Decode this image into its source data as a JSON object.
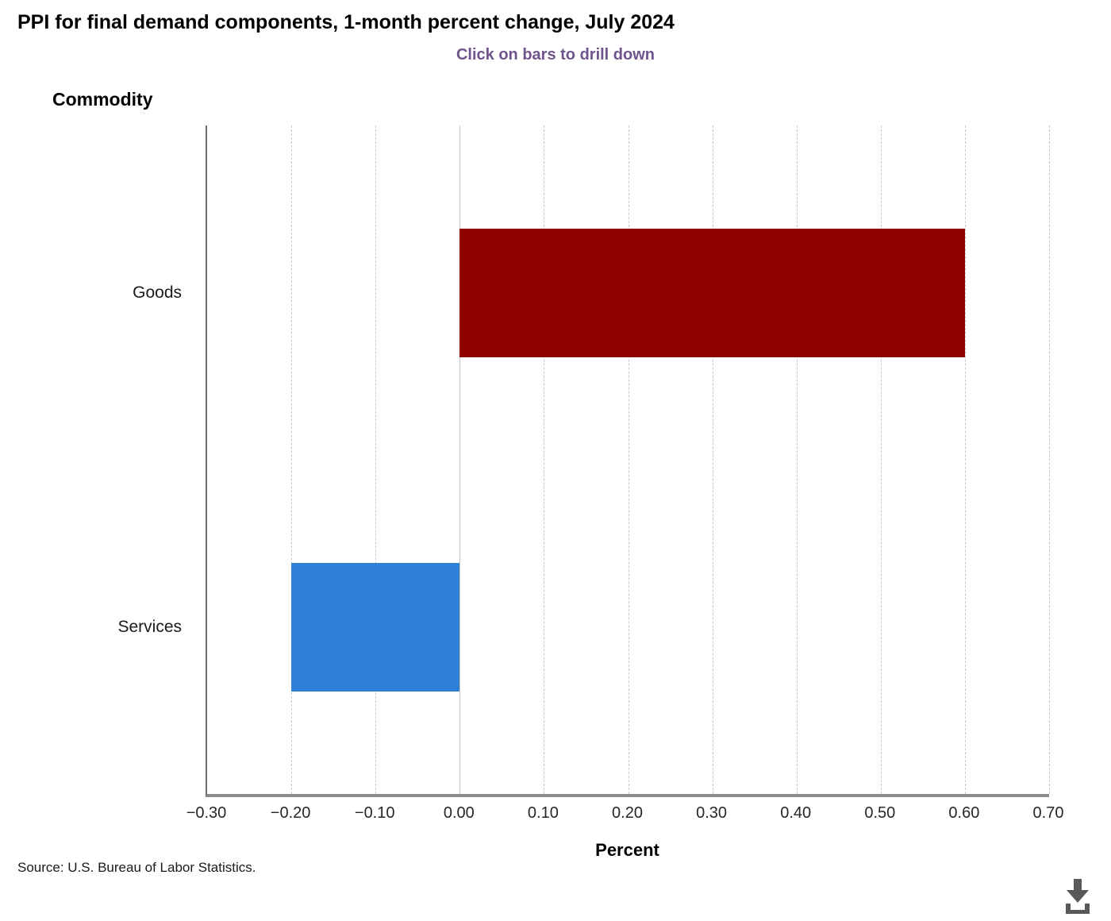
{
  "chart_data": {
    "type": "bar",
    "orientation": "horizontal",
    "title": "PPI for final demand components, 1-month percent change, July 2024",
    "subtitle": "Click on bars to drill down",
    "ylabel": "Commodity",
    "xlabel": "Percent",
    "categories": [
      "Goods",
      "Services"
    ],
    "values": [
      0.6,
      -0.2
    ],
    "bar_colors": [
      "#910000",
      "#2f7ed8"
    ],
    "xlim": [
      -0.3,
      0.7
    ],
    "xticks": [
      -0.3,
      -0.2,
      -0.1,
      0.0,
      0.1,
      0.2,
      0.3,
      0.4,
      0.5,
      0.6,
      0.7
    ],
    "xtick_labels": [
      "−0.30",
      "−0.20",
      "−0.10",
      "0.00",
      "0.10",
      "0.20",
      "0.30",
      "0.40",
      "0.50",
      "0.60",
      "0.70"
    ],
    "grid": "vertical-dashed",
    "legend": "none"
  },
  "source_note": "Source: U.S. Bureau of Labor Statistics.",
  "icons": {
    "download": "download-icon"
  },
  "colors": {
    "subtitle_accent": "#70558c",
    "goods_bar": "#910000",
    "services_bar": "#2f7ed8",
    "axis_line": "#6e6e6e",
    "baseline": "#8c8c8c",
    "gridline": "#c9c9c9",
    "icon_gray": "#58595b"
  }
}
